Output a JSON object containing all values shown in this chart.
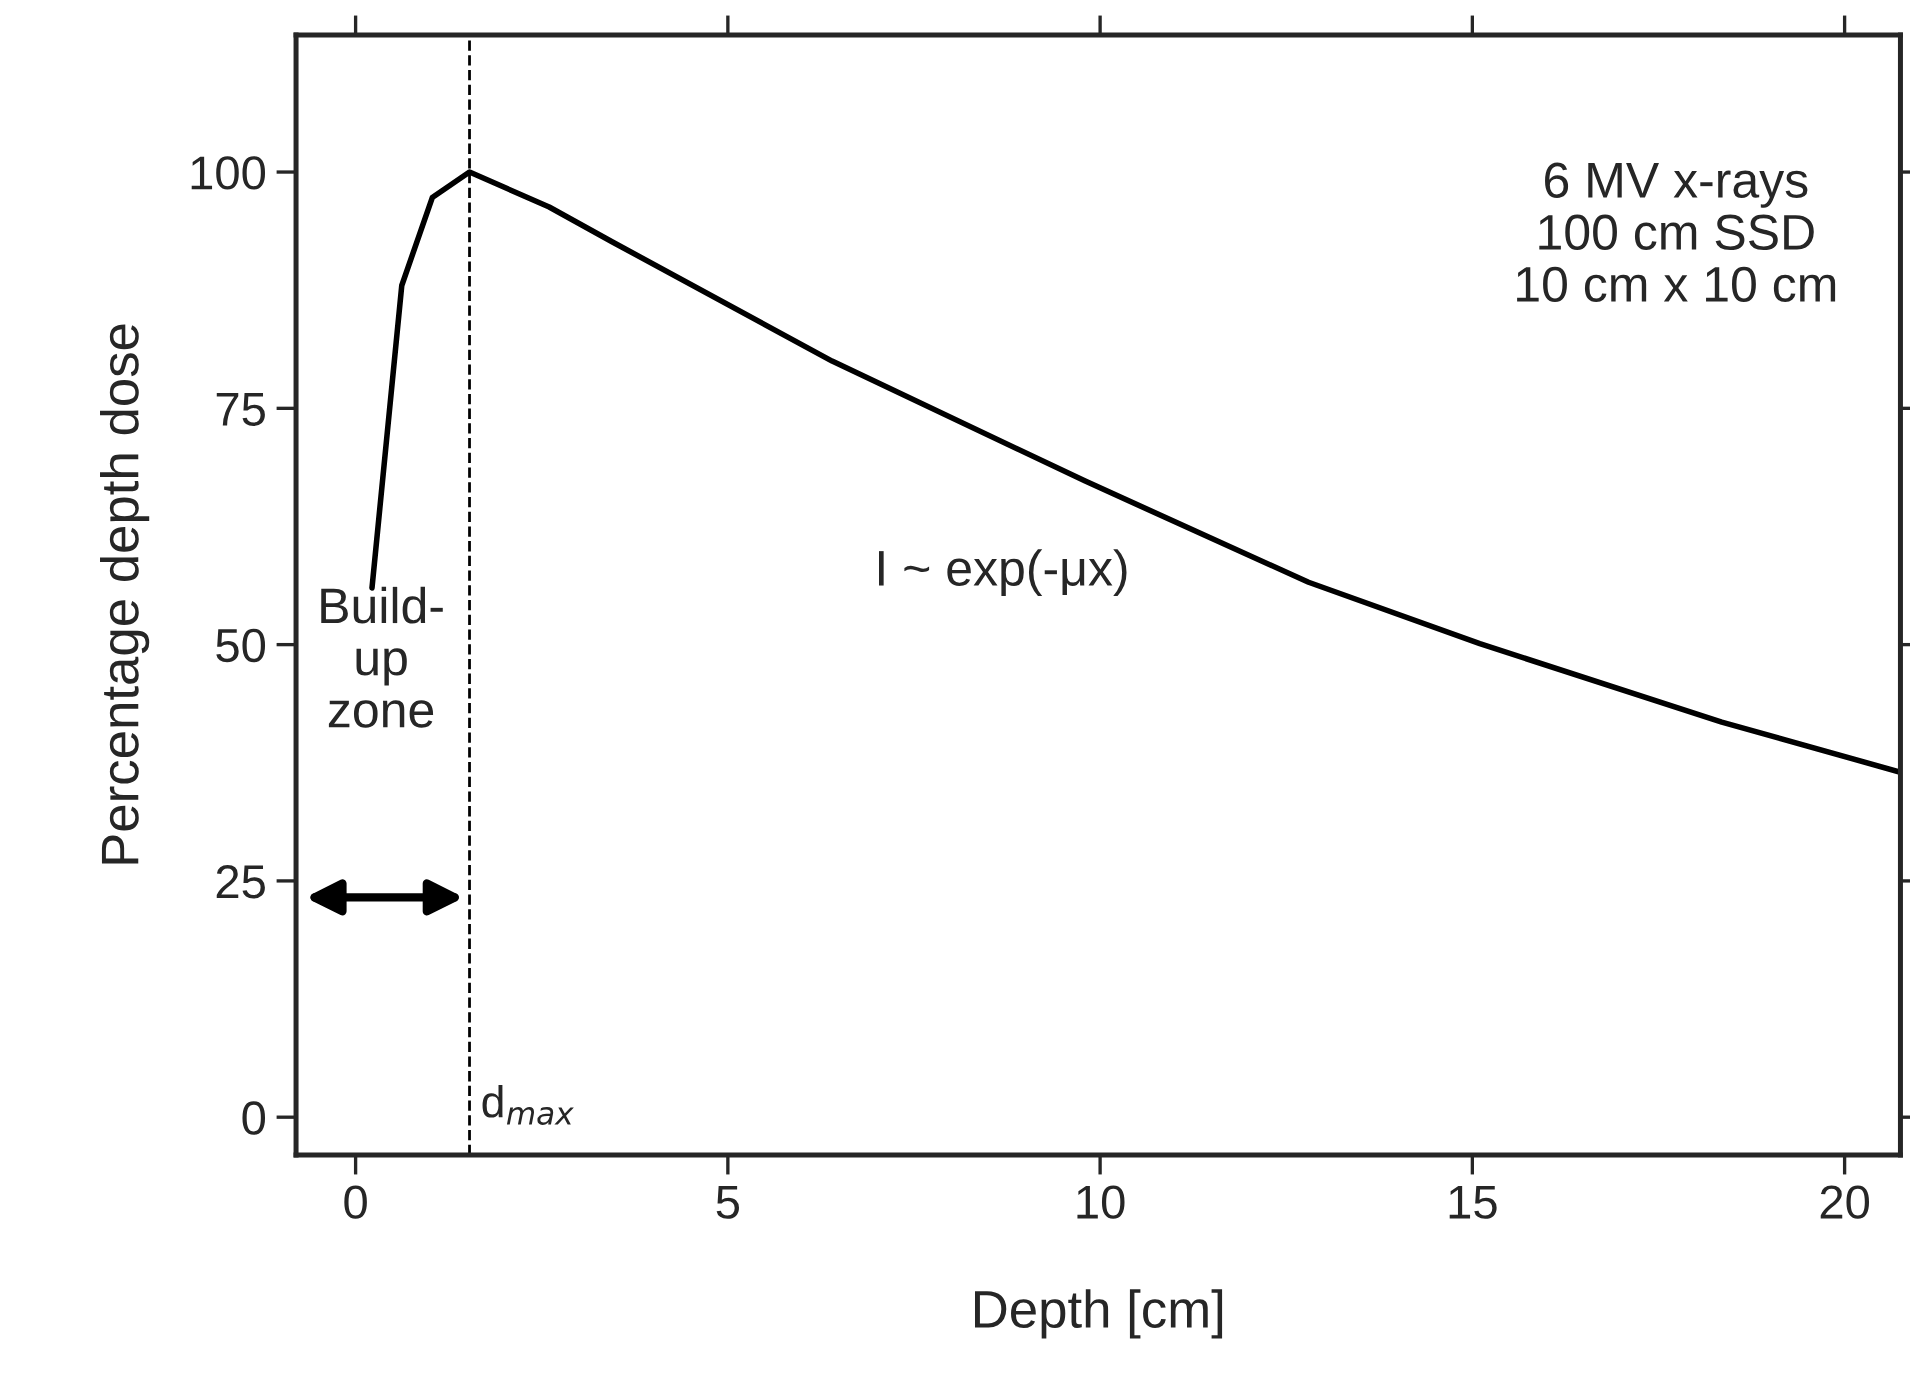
{
  "chart_data": {
    "type": "line",
    "xlabel": "Depth [cm]",
    "ylabel": "Percentage depth dose",
    "xlim": [
      -0.8,
      20.75
    ],
    "xticks": [
      0,
      5,
      10,
      15,
      20
    ],
    "ylim": [
      -4,
      114.5
    ],
    "yticks": [
      0,
      25,
      50,
      75,
      100
    ],
    "grid": false,
    "marker": "none",
    "line_style": "solid",
    "series": [
      {
        "color": "#000000",
        "x": [
          0.22,
          0.62,
          1.03,
          1.53,
          2.6,
          3.45,
          6.4,
          9.8,
          12.8,
          15.1,
          18.35,
          20.75
        ],
        "values": [
          56,
          88,
          97.3,
          100,
          96.3,
          92.6,
          80,
          67.3,
          56.6,
          50.1,
          41.8,
          36.5
        ]
      }
    ],
    "ref_lines": [
      {
        "axis": "x",
        "value": 1.53,
        "label": "d$_{max}$",
        "color": "#000000",
        "line_style": "dashed"
      }
    ],
    "annotations": [
      "6 MV x-rays\n100 cm SSD\n10 cm x 10 cm",
      "I ~ exp(-μx)",
      "Build-\nup\nzone"
    ]
  }
}
